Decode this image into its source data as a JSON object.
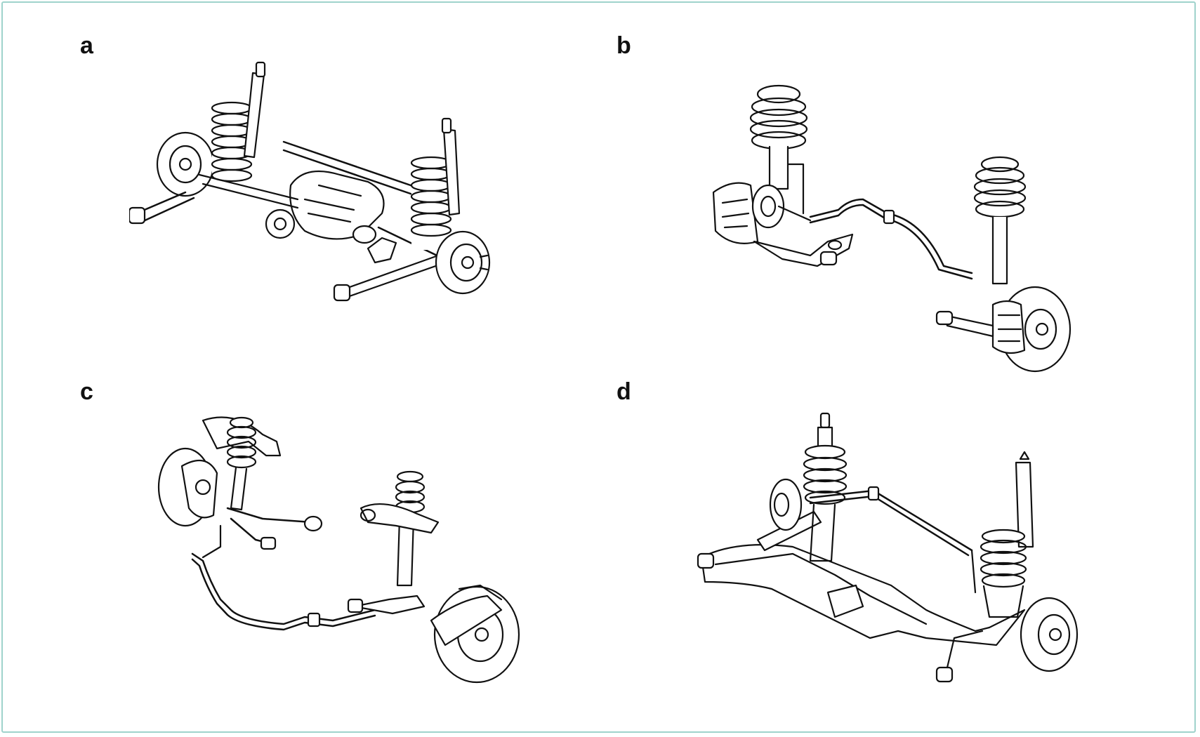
{
  "panels": [
    {
      "label": "a"
    },
    {
      "label": "b"
    },
    {
      "label": "c"
    },
    {
      "label": "d"
    }
  ],
  "colors": {
    "frame": "#9fd3cc",
    "ink": "#111111",
    "paper": "#ffffff"
  }
}
